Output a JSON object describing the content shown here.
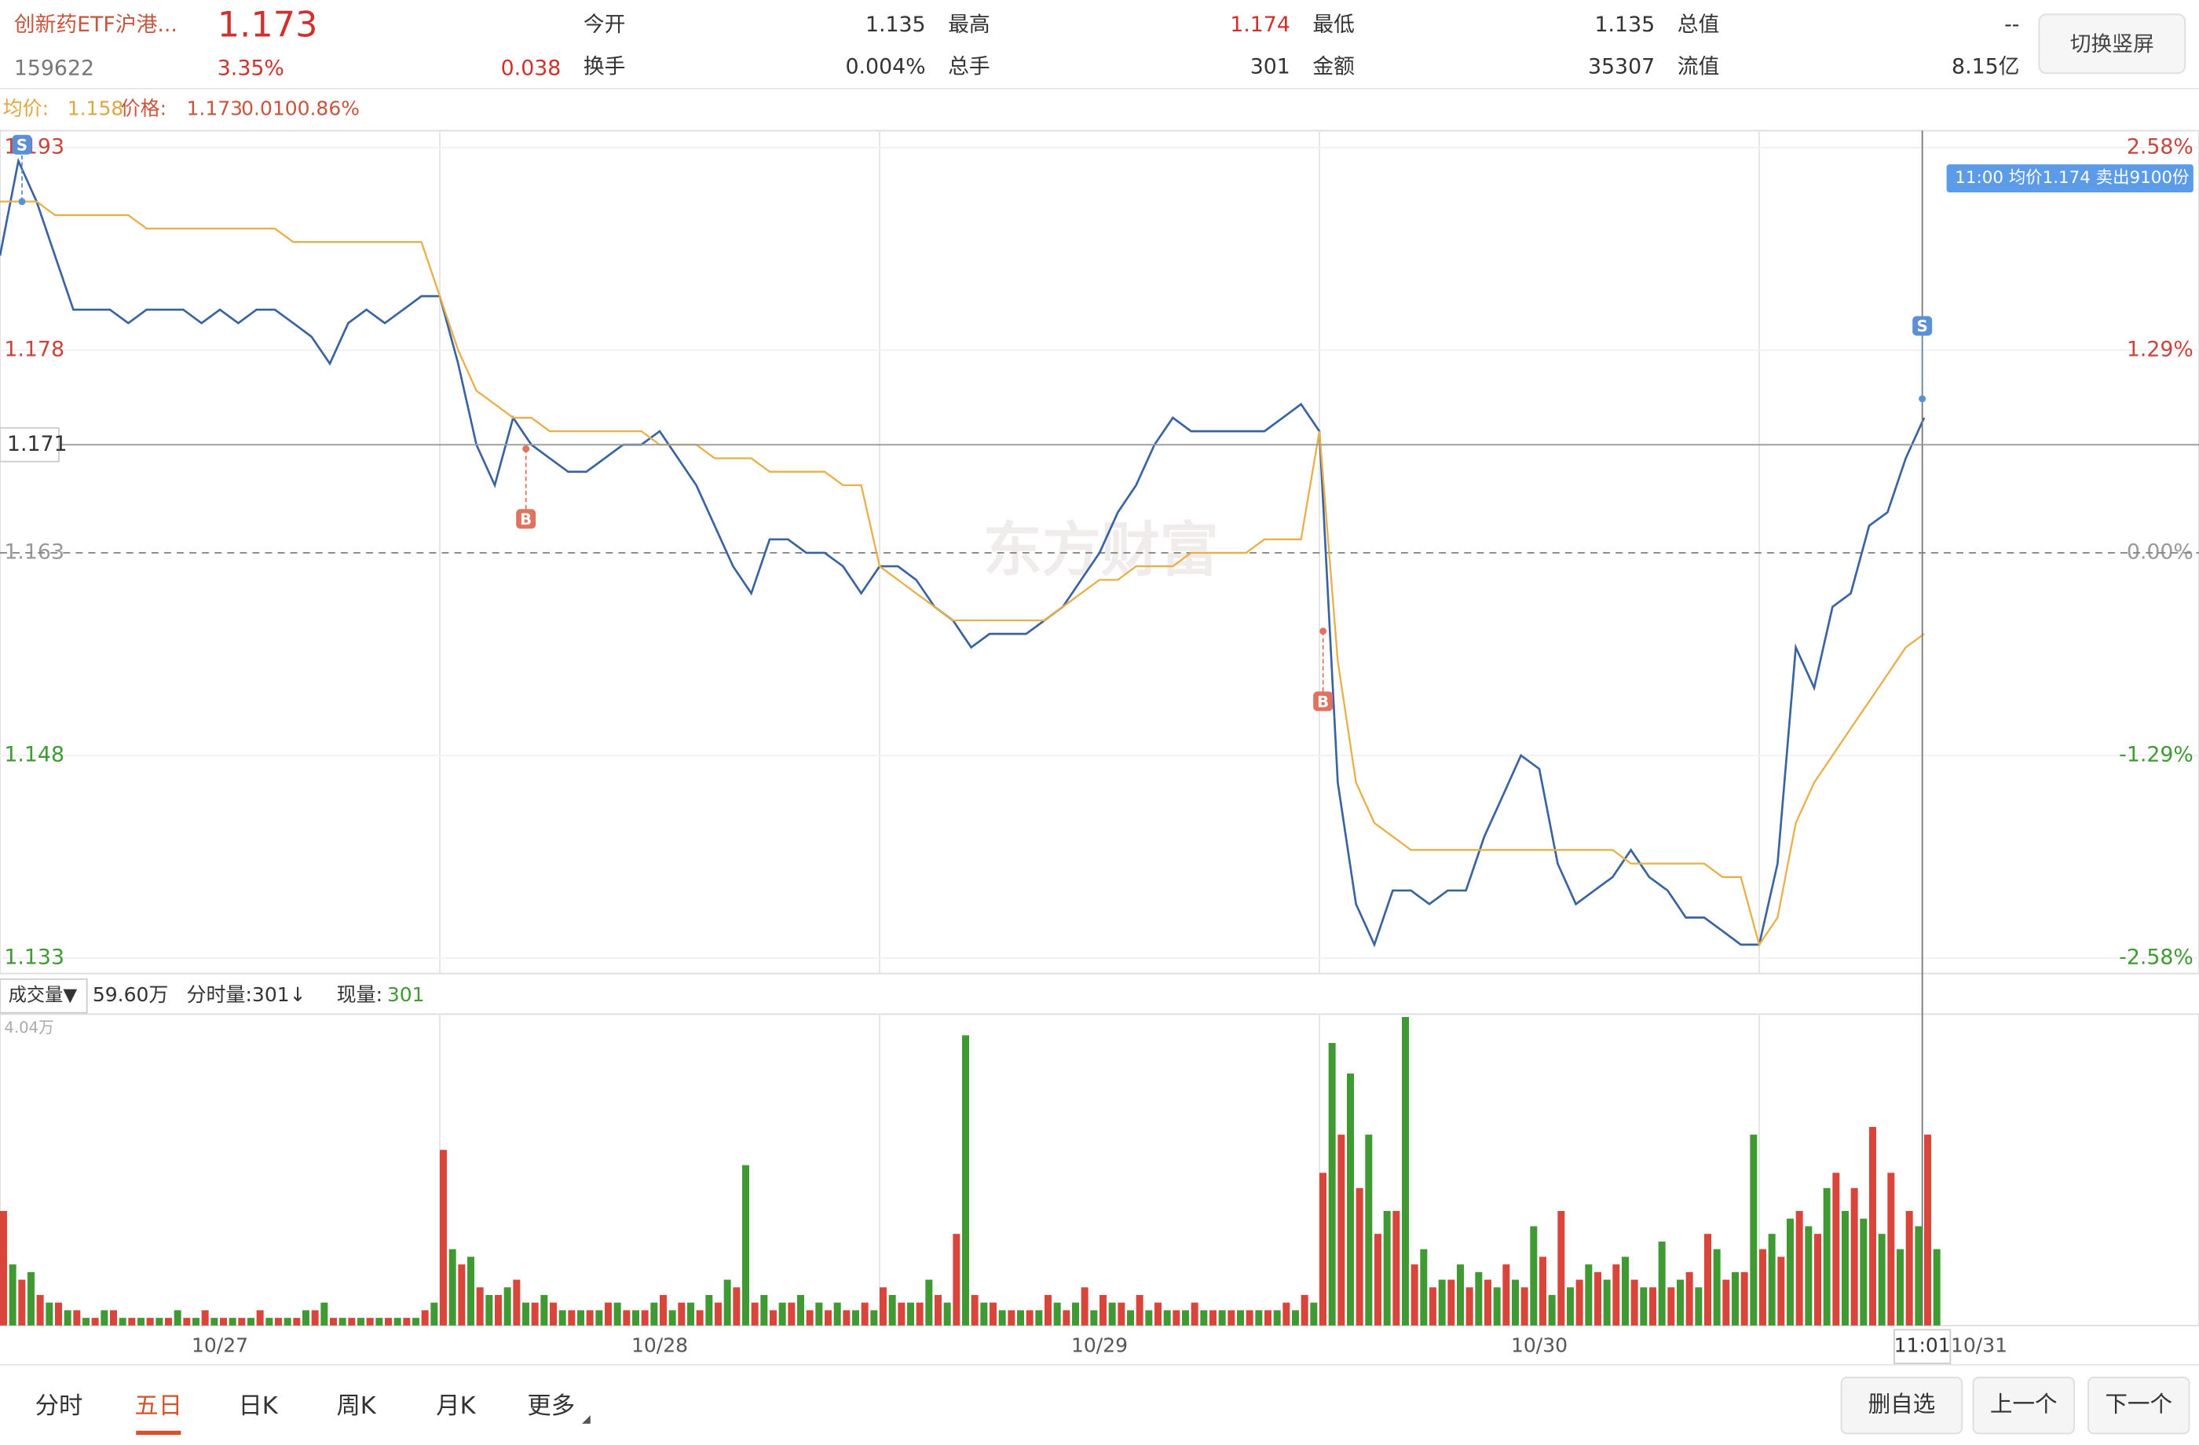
{
  "header": {
    "name": "创新药ETF沪港...",
    "price": "1.173",
    "code": "159622",
    "change_pct": "3.35%",
    "change": "0.038",
    "stats": [
      {
        "label": "今开",
        "value": "1.135"
      },
      {
        "label": "最高",
        "value": "1.174"
      },
      {
        "label": "最低",
        "value": "1.135"
      },
      {
        "label": "总值",
        "value": "--"
      },
      {
        "label": "换手",
        "value": "0.004%"
      },
      {
        "label": "总手",
        "value": "301"
      },
      {
        "label": "金额",
        "value": "35307"
      },
      {
        "label": "流值",
        "value": "8.15亿"
      }
    ],
    "button": "切换竖屏"
  },
  "info_line": {
    "avg_label": "均价:",
    "avg": "1.158",
    "price_label": "价格:",
    "price": "1.173",
    "change": "0.010",
    "pct": "0.86%"
  },
  "watermark": "东方财富",
  "chart_data": {
    "type": "line",
    "x": [
      0,
      10,
      20,
      30,
      40,
      50,
      60,
      70,
      80,
      90,
      100,
      110,
      120,
      130,
      140,
      150,
      160,
      170,
      180,
      190,
      200,
      210,
      220,
      230,
      240,
      250,
      260,
      270,
      280,
      290,
      300,
      310,
      320,
      330,
      340,
      350,
      360,
      370,
      380,
      390,
      400,
      410,
      420,
      430,
      440,
      450,
      460,
      470,
      480,
      490,
      500,
      510,
      520,
      530,
      540,
      550,
      560,
      570,
      580,
      590,
      600,
      610,
      620,
      630,
      640,
      650,
      660,
      670,
      680,
      690,
      700,
      710,
      720,
      730,
      740,
      750,
      760,
      770,
      780,
      790,
      800,
      810,
      820,
      830,
      840,
      850,
      860,
      870,
      880,
      890,
      900,
      910,
      920,
      930,
      940,
      950,
      960,
      970,
      980,
      990,
      1000,
      1010,
      1020,
      1030,
      1040,
      1050
    ],
    "xlim": [
      0,
      1200
    ],
    "xticks": [
      {
        "value": 120,
        "label": "10/27"
      },
      {
        "value": 360,
        "label": "10/28"
      },
      {
        "value": 600,
        "label": "10/29"
      },
      {
        "value": 840,
        "label": "10/30"
      },
      {
        "value": 1080,
        "label": "10/31"
      }
    ],
    "ylim": [
      1.133,
      1.193
    ],
    "yticks": [
      1.133,
      1.148,
      1.163,
      1.178,
      1.193
    ],
    "y2lim": [
      -2.58,
      2.58
    ],
    "y2ticks": [
      {
        "value": -2.58,
        "label": "-2.58%"
      },
      {
        "value": -1.29,
        "label": "-1.29%"
      },
      {
        "value": 0,
        "label": "0.00%"
      },
      {
        "value": 1.29,
        "label": "1.29%"
      },
      {
        "value": 2.58,
        "label": "2.58%"
      }
    ],
    "prev_close": 1.163,
    "series": [
      {
        "color": "#3a64a0",
        "values": [
          1.185,
          1.192,
          1.189,
          1.185,
          1.181,
          1.181,
          1.181,
          1.18,
          1.181,
          1.181,
          1.181,
          1.18,
          1.181,
          1.18,
          1.181,
          1.181,
          1.18,
          1.179,
          1.177,
          1.18,
          1.181,
          1.18,
          1.181,
          1.182,
          1.182,
          1.177,
          1.171,
          1.168,
          1.173,
          1.171,
          1.17,
          1.169,
          1.169,
          1.17,
          1.171,
          1.171,
          1.172,
          1.17,
          1.168,
          1.165,
          1.162,
          1.16,
          1.164,
          1.164,
          1.163,
          1.163,
          1.162,
          1.16,
          1.162,
          1.162,
          1.161,
          1.159,
          1.158,
          1.156,
          1.157,
          1.157,
          1.157,
          1.158,
          1.159,
          1.161,
          1.163,
          1.166,
          1.168,
          1.171,
          1.173,
          1.172,
          1.172,
          1.172,
          1.172,
          1.172,
          1.173,
          1.174,
          1.172,
          1.146,
          1.137,
          1.134,
          1.138,
          1.138,
          1.137,
          1.138,
          1.138,
          1.142,
          1.145,
          1.148,
          1.147,
          1.14,
          1.137,
          1.138,
          1.139,
          1.141,
          1.139,
          1.138,
          1.136,
          1.136,
          1.135,
          1.134,
          1.134,
          1.14,
          1.156,
          1.153,
          1.159,
          1.16,
          1.165,
          1.166,
          1.17,
          1.173
        ]
      },
      {
        "color": "#e8b04a",
        "values": [
          1.189,
          1.189,
          1.189,
          1.188,
          1.188,
          1.188,
          1.188,
          1.188,
          1.187,
          1.187,
          1.187,
          1.187,
          1.187,
          1.187,
          1.187,
          1.187,
          1.186,
          1.186,
          1.186,
          1.186,
          1.186,
          1.186,
          1.186,
          1.186,
          1.182,
          1.178,
          1.175,
          1.174,
          1.173,
          1.173,
          1.172,
          1.172,
          1.172,
          1.172,
          1.172,
          1.172,
          1.171,
          1.171,
          1.171,
          1.17,
          1.17,
          1.17,
          1.169,
          1.169,
          1.169,
          1.169,
          1.168,
          1.168,
          1.162,
          1.161,
          1.16,
          1.159,
          1.158,
          1.158,
          1.158,
          1.158,
          1.158,
          1.158,
          1.159,
          1.16,
          1.161,
          1.161,
          1.162,
          1.162,
          1.162,
          1.163,
          1.163,
          1.163,
          1.163,
          1.164,
          1.164,
          1.164,
          1.172,
          1.155,
          1.146,
          1.143,
          1.142,
          1.141,
          1.141,
          1.141,
          1.141,
          1.141,
          1.141,
          1.141,
          1.141,
          1.141,
          1.141,
          1.141,
          1.141,
          1.14,
          1.14,
          1.14,
          1.14,
          1.14,
          1.139,
          1.139,
          1.134,
          1.136,
          1.143,
          1.146,
          1.148,
          1.15,
          1.152,
          1.154,
          1.156,
          1.157
        ]
      }
    ],
    "trades": [
      {
        "label": "S",
        "x": 12,
        "price": 1.189
      },
      {
        "label": "B",
        "x": 287,
        "price": 1.1707
      },
      {
        "label": "B",
        "x": 722,
        "price": 1.1572
      },
      {
        "label": "S",
        "x": 1049,
        "price": 1.1744
      }
    ],
    "tooltip": "11:00 均价1.174 卖出9100份",
    "cursor": {
      "x": 1049,
      "time": "11:01",
      "value": 1.171
    },
    "volume": {
      "ylim": [
        0,
        4.04
      ],
      "yticks": [
        {
          "value": 4.04,
          "label": "4.04万"
        }
      ],
      "selector": "成交量▼",
      "total": "59.60万",
      "minute_vol": "分时量:301↓",
      "now_label": "现量:",
      "now": "301",
      "series": [
        {
          "color": "#d9453a",
          "values": [
            1.5,
            0.6,
            0.4,
            0.3,
            0.2,
            0.1,
            0.2,
            0.1,
            0.1,
            0.1,
            0.1,
            0.2,
            0.1,
            0.1,
            0.2,
            0.1,
            0.1,
            0.2,
            0.1,
            0.1,
            0.1,
            0.1,
            0.1,
            0.2,
            2.3,
            0.8,
            0.5,
            0.4,
            0.6,
            0.3,
            0.3,
            0.2,
            0.2,
            0.3,
            0.2,
            0.2,
            0.4,
            0.3,
            0.2,
            0.3,
            0.5,
            0.3,
            0.2,
            0.3,
            0.2,
            0.2,
            0.2,
            0.3,
            0.5,
            0.3,
            0.3,
            0.4,
            1.2,
            0.4,
            0.3,
            0.2,
            0.2,
            0.4,
            0.2,
            0.5,
            0.4,
            0.3,
            0.4,
            0.3,
            0.2,
            0.3,
            0.2,
            0.2,
            0.2,
            0.2,
            0.3,
            0.4,
            2.0,
            2.5,
            1.8,
            1.2,
            1.5,
            0.8,
            0.5,
            0.6,
            0.5,
            0.6,
            0.8,
            0.5,
            0.9,
            1.5,
            0.6,
            0.7,
            0.8,
            0.6,
            0.5,
            0.5,
            0.7,
            1.2,
            0.6,
            0.7,
            1.0,
            0.9,
            1.5,
            1.2,
            2.0,
            1.8,
            2.6,
            2.0,
            1.5,
            2.5
          ]
        },
        {
          "color": "#3f9a34",
          "values": [
            0.8,
            0.7,
            0.3,
            0.2,
            0.1,
            0.2,
            0.1,
            0.1,
            0.1,
            0.2,
            0.1,
            0.1,
            0.1,
            0.1,
            0.1,
            0.1,
            0.2,
            0.3,
            0.1,
            0.1,
            0.1,
            0.1,
            0.1,
            0.3,
            1.0,
            0.9,
            0.4,
            0.5,
            0.3,
            0.4,
            0.2,
            0.2,
            0.2,
            0.3,
            0.2,
            0.3,
            0.2,
            0.3,
            0.4,
            0.6,
            2.1,
            0.4,
            0.3,
            0.4,
            0.3,
            0.3,
            0.2,
            0.2,
            0.4,
            0.3,
            0.6,
            0.3,
            3.8,
            0.3,
            0.2,
            0.2,
            0.2,
            0.3,
            0.3,
            0.2,
            0.3,
            0.2,
            0.2,
            0.2,
            0.2,
            0.2,
            0.2,
            0.2,
            0.2,
            0.2,
            0.2,
            0.3,
            3.7,
            3.3,
            2.5,
            1.5,
            4.04,
            1.0,
            0.6,
            0.8,
            0.7,
            0.5,
            0.6,
            1.3,
            0.4,
            0.5,
            0.8,
            0.6,
            0.9,
            0.5,
            1.1,
            0.6,
            0.5,
            1.0,
            0.7,
            2.5,
            1.2,
            1.4,
            1.3,
            1.8,
            1.5,
            1.4,
            1.2,
            1.0,
            1.3,
            1.0
          ]
        }
      ]
    }
  },
  "tabs": [
    "分时",
    "五日",
    "日K",
    "周K",
    "月K",
    "更多"
  ],
  "active_tab": 1,
  "buttons": [
    "删自选",
    "上一个",
    "下一个"
  ]
}
